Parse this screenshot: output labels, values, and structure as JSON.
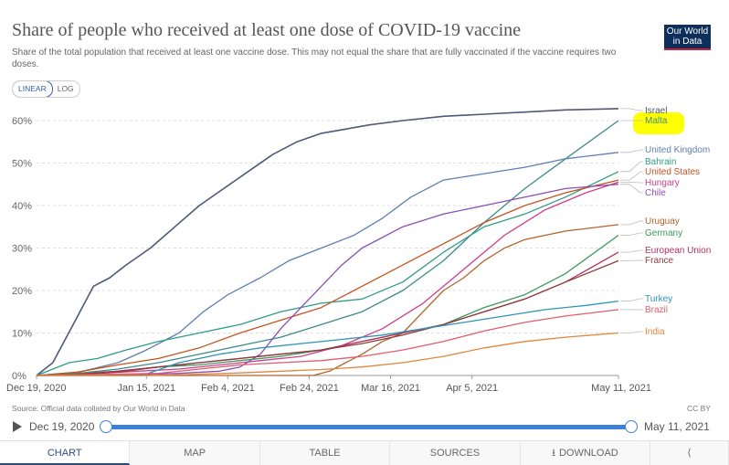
{
  "header": {
    "title": "Share of people who received at least one dose of COVID-19 vaccine",
    "subtitle": "Share of the total population that received at least one vaccine dose. This may not equal the share that are fully vaccinated if the vaccine requires two doses.",
    "logo_line1": "Our World",
    "logo_line2": "in Data"
  },
  "scale_toggle": {
    "linear_label": "LINEAR",
    "log_label": "LOG",
    "selected": "LINEAR"
  },
  "footer": {
    "source": "Source: Official data collated by Our World in Data",
    "license": "CC BY"
  },
  "timeline": {
    "start_label": "Dec 19, 2020",
    "end_label": "May 11, 2021",
    "start_fraction": 0,
    "end_fraction": 1
  },
  "tabs": [
    {
      "label": "CHART",
      "active": true
    },
    {
      "label": "MAP"
    },
    {
      "label": "TABLE"
    },
    {
      "label": "SOURCES"
    },
    {
      "label": "DOWNLOAD",
      "icon": "download-icon"
    },
    {
      "label": "",
      "icon": "share-icon"
    }
  ],
  "colors": {
    "highlight": "#ffff00",
    "grid": "#dddddd",
    "accent": "#3e7fd9"
  },
  "chart_data": {
    "type": "line",
    "title": "Share of people who received at least one dose of COVID-19 vaccine",
    "x_tick_labels": [
      "Dec 19, 2020",
      "Jan 15, 2021",
      "Feb 4, 2021",
      "Feb 24, 2021",
      "Mar 16, 2021",
      "Apr 5, 2021",
      "May 11, 2021"
    ],
    "x_tick_days": [
      0,
      27,
      47,
      67,
      87,
      107,
      143
    ],
    "y_tick_labels": [
      "0%",
      "10%",
      "20%",
      "30%",
      "40%",
      "50%",
      "60%"
    ],
    "y_ticks": [
      0,
      10,
      20,
      30,
      40,
      50,
      60
    ],
    "xlim_days": [
      0,
      143
    ],
    "ylim": [
      0,
      63
    ],
    "grid": "horizontal-dashed",
    "legend": "right-labels",
    "highlighted_series": "Malta",
    "series": [
      {
        "name": "Israel",
        "color": "#4c5a78",
        "x": [
          0,
          4,
          9,
          14,
          18,
          22,
          28,
          34,
          40,
          46,
          52,
          58,
          64,
          70,
          76,
          82,
          90,
          100,
          110,
          120,
          130,
          143
        ],
        "y": [
          0,
          3,
          12,
          21,
          23,
          26,
          30,
          35,
          40,
          44,
          48,
          52,
          55,
          57,
          58,
          59,
          60,
          61,
          61.5,
          62,
          62.5,
          62.8
        ]
      },
      {
        "name": "Malta",
        "color": "#3e8a8a",
        "x": [
          0,
          10,
          20,
          30,
          40,
          50,
          60,
          70,
          80,
          90,
          100,
          110,
          120,
          130,
          143
        ],
        "y": [
          0,
          0.5,
          1.5,
          3,
          5,
          7,
          9,
          12,
          15,
          20,
          27,
          36,
          44,
          51,
          60
        ]
      },
      {
        "name": "United Kingdom",
        "color": "#5d7fb2",
        "x": [
          0,
          10,
          20,
          27,
          35,
          41,
          47,
          55,
          62,
          70,
          78,
          85,
          92,
          100,
          110,
          120,
          130,
          143
        ],
        "y": [
          0,
          0.7,
          3,
          6,
          10,
          15,
          19,
          23,
          27,
          30,
          33,
          37,
          42,
          46,
          47.5,
          49,
          51,
          52.5
        ]
      },
      {
        "name": "Bahrain",
        "color": "#2f9c84",
        "x": [
          0,
          8,
          15,
          22,
          30,
          40,
          50,
          60,
          70,
          80,
          90,
          100,
          110,
          120,
          130,
          143
        ],
        "y": [
          0,
          3,
          4,
          6,
          8,
          10,
          12,
          15,
          17,
          18,
          22,
          29,
          35,
          38,
          42,
          48
        ]
      },
      {
        "name": "United States",
        "color": "#c8521f",
        "x": [
          0,
          10,
          20,
          30,
          40,
          50,
          60,
          70,
          80,
          90,
          100,
          110,
          120,
          130,
          143
        ],
        "y": [
          0,
          0.8,
          2.5,
          4,
          6.5,
          10,
          13,
          16,
          21,
          26,
          31,
          36,
          40,
          43,
          46
        ]
      },
      {
        "name": "Hungary",
        "color": "#d13e8a",
        "x": [
          0,
          15,
          25,
          35,
          45,
          55,
          65,
          75,
          85,
          95,
          105,
          115,
          125,
          135,
          143
        ],
        "y": [
          0,
          0.5,
          1,
          1.5,
          2.5,
          3.5,
          4.5,
          7,
          11,
          17,
          25,
          33,
          39,
          43,
          45.5
        ]
      },
      {
        "name": "Chile",
        "color": "#8a4fb5",
        "x": [
          0,
          25,
          35,
          45,
          50,
          55,
          60,
          65,
          70,
          75,
          80,
          90,
          100,
          110,
          120,
          130,
          143
        ],
        "y": [
          0,
          0.2,
          0.5,
          1,
          2,
          5,
          11,
          16,
          21,
          26,
          30,
          35,
          38,
          40,
          42,
          44,
          45
        ]
      },
      {
        "name": "Uruguay",
        "color": "#b5622c",
        "x": [
          0,
          68,
          72,
          76,
          80,
          85,
          90,
          95,
          100,
          105,
          110,
          115,
          120,
          130,
          143
        ],
        "y": [
          0,
          0,
          1,
          3,
          5,
          8,
          10,
          15,
          20,
          23,
          27,
          30,
          32,
          34,
          35.5
        ]
      },
      {
        "name": "Germany",
        "color": "#3a9a5c",
        "x": [
          0,
          10,
          20,
          30,
          40,
          50,
          60,
          70,
          80,
          90,
          100,
          110,
          120,
          130,
          143
        ],
        "y": [
          0,
          0.5,
          1,
          2,
          2.5,
          3.5,
          4.5,
          6,
          8,
          10,
          12,
          16,
          19,
          24,
          33
        ]
      },
      {
        "name": "European Union",
        "color": "#b52f5c",
        "x": [
          0,
          10,
          20,
          30,
          40,
          50,
          60,
          70,
          80,
          90,
          100,
          110,
          120,
          130,
          143
        ],
        "y": [
          0,
          0.3,
          1,
          2,
          3,
          4,
          5,
          6,
          8,
          10,
          12,
          15,
          18,
          22,
          29
        ]
      },
      {
        "name": "France",
        "color": "#8c3d3d",
        "x": [
          0,
          10,
          20,
          30,
          40,
          50,
          60,
          70,
          80,
          90,
          100,
          110,
          120,
          130,
          143
        ],
        "y": [
          0,
          0.2,
          0.8,
          2,
          3,
          4,
          5,
          6,
          7.5,
          9.5,
          12,
          15,
          18,
          22,
          27
        ]
      },
      {
        "name": "Turkey",
        "color": "#2e93b5",
        "x": [
          0,
          26,
          35,
          45,
          55,
          65,
          75,
          85,
          95,
          105,
          115,
          125,
          135,
          143
        ],
        "y": [
          0,
          0,
          3,
          5,
          6.5,
          7.5,
          8.5,
          9.5,
          11,
          12.5,
          14,
          15.5,
          16.5,
          17.5
        ]
      },
      {
        "name": "Brazil",
        "color": "#e25d6e",
        "x": [
          0,
          30,
          40,
          50,
          60,
          70,
          80,
          90,
          100,
          110,
          120,
          130,
          143
        ],
        "y": [
          0,
          0.5,
          1.5,
          2.5,
          3,
          3.5,
          4.5,
          6,
          8,
          10.5,
          12.5,
          14,
          15.5
        ]
      },
      {
        "name": "India",
        "color": "#e0873a",
        "x": [
          0,
          28,
          40,
          50,
          60,
          70,
          80,
          90,
          100,
          110,
          120,
          130,
          143
        ],
        "y": [
          0,
          0,
          0.3,
          0.6,
          1,
          1.4,
          2,
          3,
          4.5,
          6.5,
          8,
          9,
          10
        ]
      }
    ]
  }
}
